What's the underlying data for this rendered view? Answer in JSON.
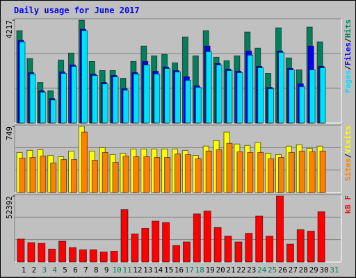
{
  "title": "Daily usage for June 2017",
  "legend_separator": "/",
  "chart_data": [
    {
      "type": "bar",
      "categories": [
        "1",
        "2",
        "3",
        "4",
        "5",
        "6",
        "7",
        "8",
        "9",
        "10",
        "11",
        "12",
        "13",
        "14",
        "15",
        "16",
        "17",
        "18",
        "19",
        "20",
        "21",
        "22",
        "23",
        "24",
        "25",
        "26",
        "27",
        "28",
        "29",
        "30",
        "31"
      ],
      "category_colors": [
        "#000000",
        "#000000",
        "#00805c",
        "#00805c",
        "#000000",
        "#000000",
        "#000000",
        "#000000",
        "#000000",
        "#00805c",
        "#00805c",
        "#000000",
        "#000000",
        "#000000",
        "#000000",
        "#000000",
        "#00805c",
        "#00805c",
        "#000000",
        "#000000",
        "#000000",
        "#000000",
        "#000000",
        "#00805c",
        "#00805c",
        "#000000",
        "#000000",
        "#000000",
        "#000000",
        "#000000",
        "#00805c"
      ],
      "ylim": [
        0,
        4217
      ],
      "yticks": [
        4217
      ],
      "grid": true,
      "series": [
        {
          "name": "Hits",
          "color": "#00805c",
          "values": [
            3787,
            2640,
            1664,
            1320,
            2582,
            2869,
            4217,
            2525,
            2152,
            2152,
            1836,
            2525,
            3156,
            2754,
            2812,
            2467,
            3529,
            2754,
            3787,
            2697,
            2553,
            2754,
            3730,
            3070,
            2037,
            3902,
            2668,
            2181,
            3931,
            3328,
            0
          ]
        },
        {
          "name": "Files",
          "color": "#0000ff",
          "values": [
            3390,
            2065,
            1320,
            1005,
            2095,
            2380,
            3845,
            2010,
            1665,
            1950,
            1405,
            2065,
            2525,
            2123,
            2295,
            2150,
            1893,
            1520,
            3156,
            2440,
            2210,
            2125,
            2955,
            2325,
            1465,
            2955,
            2240,
            1607,
            3156,
            2324,
            0
          ]
        },
        {
          "name": "Pages",
          "color": "#00e0ff",
          "values": [
            3328,
            2008,
            1262,
            947,
            2037,
            2324,
            3787,
            1951,
            1607,
            1893,
            1348,
            2008,
            2381,
            2008,
            2238,
            2094,
            1750,
            1463,
            2926,
            2381,
            2152,
            2066,
            2783,
            2267,
            1406,
            2898,
            2181,
            1492,
            2181,
            2267,
            0
          ]
        }
      ]
    },
    {
      "type": "bar",
      "ylim": [
        0,
        749
      ],
      "yticks": [
        749
      ],
      "grid": true,
      "series": [
        {
          "name": "Visits",
          "color": "#ffff00",
          "values": [
            454,
            478,
            486,
            422,
            406,
            470,
            749,
            470,
            510,
            430,
            446,
            494,
            494,
            494,
            494,
            494,
            478,
            422,
            526,
            590,
            685,
            550,
            534,
            566,
            446,
            430,
            526,
            542,
            502,
            526,
            0
          ]
        },
        {
          "name": "Sites",
          "color": "#ff8000",
          "values": [
            390,
            398,
            414,
            335,
            374,
            374,
            685,
            366,
            454,
            343,
            414,
            406,
            406,
            398,
            398,
            438,
            430,
            382,
            470,
            486,
            558,
            462,
            454,
            454,
            382,
            398,
            454,
            470,
            462,
            470,
            0
          ]
        }
      ]
    },
    {
      "type": "bar",
      "ylim": [
        0,
        52392
      ],
      "yticks": [
        52392
      ],
      "grid": true,
      "series": [
        {
          "name": "kB F",
          "color": "#ff0000",
          "values": [
            18224,
            15377,
            14807,
            10251,
            16515,
            11390,
            9681,
            9681,
            7973,
            8543,
            41573,
            22210,
            26766,
            32461,
            31322,
            13098,
            15946,
            38156,
            40434,
            27336,
            20502,
            15946,
            22780,
            36448,
            20502,
            52392,
            14237,
            25627,
            24488,
            39864,
            0
          ]
        }
      ]
    }
  ]
}
